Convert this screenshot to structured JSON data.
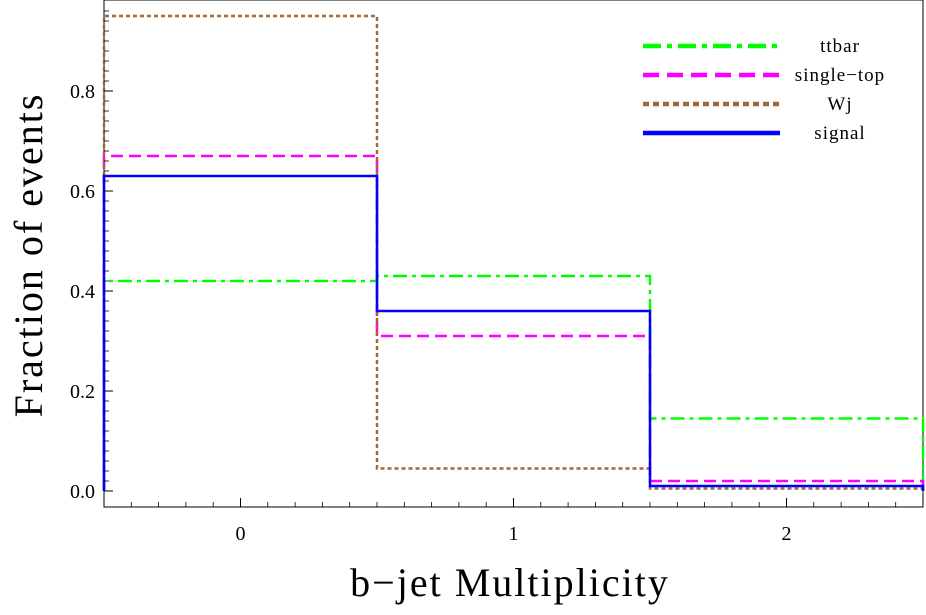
{
  "chart_data": {
    "type": "line",
    "title": "",
    "xlabel": "b−jet Multiplicity",
    "ylabel": "Fraction of events",
    "xlim": [
      -0.5,
      2.5
    ],
    "ylim": [
      0.0,
      0.98
    ],
    "x_ticks": [
      "0",
      "1",
      "2"
    ],
    "y_ticks": [
      "0.0",
      "0.2",
      "0.4",
      "0.6",
      "0.8"
    ],
    "categories": [
      "0",
      "1",
      "2"
    ],
    "grid": false,
    "legend_position": "top-right",
    "series": [
      {
        "name": "ttbar",
        "values": [
          0.42,
          0.43,
          0.145
        ],
        "color": "#00ff00",
        "style": "dash-dot"
      },
      {
        "name": "single−top",
        "values": [
          0.67,
          0.31,
          0.02
        ],
        "color": "#ff00ff",
        "style": "dashed"
      },
      {
        "name": "Wj",
        "values": [
          0.95,
          0.045,
          0.005
        ],
        "color": "#a0693c",
        "style": "dotted"
      },
      {
        "name": "signal",
        "values": [
          0.63,
          0.36,
          0.01
        ],
        "color": "#0000ff",
        "style": "solid"
      }
    ]
  }
}
